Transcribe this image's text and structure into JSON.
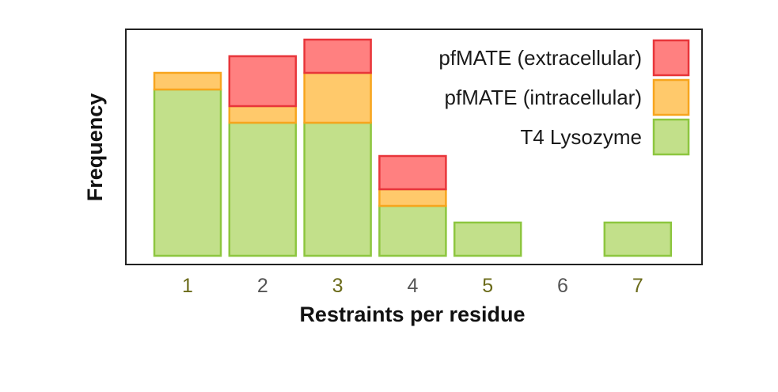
{
  "chart_data": {
    "type": "bar",
    "stacked": true,
    "categories": [
      "1",
      "2",
      "3",
      "4",
      "5",
      "6",
      "7"
    ],
    "series": [
      {
        "name": "T4 Lysozyme",
        "color": "#c2e08a",
        "edge": "#8dc63f",
        "values": [
          10,
          8,
          8,
          3,
          2,
          0,
          2
        ]
      },
      {
        "name": "pfMATE (intracellular)",
        "color": "#ffc96b",
        "edge": "#f7a51e",
        "values": [
          1,
          1,
          3,
          1,
          0,
          0,
          0
        ]
      },
      {
        "name": "pfMATE (extracellular)",
        "color": "#ff8080",
        "edge": "#e8353a",
        "values": [
          0,
          3,
          2,
          2,
          0,
          0,
          0
        ]
      }
    ],
    "legend_order": [
      "pfMATE (extracellular)",
      "pfMATE (intracellular)",
      "T4 Lysozyme"
    ],
    "legend_position": "top-right",
    "tick_colors": [
      "#6b6b1a",
      "#555555",
      "#6b6b1a",
      "#555555",
      "#6b6b1a",
      "#555555",
      "#6b6b1a"
    ],
    "xlabel": "Restraints per residue",
    "ylabel": "Frequency",
    "ylim": [
      0,
      13
    ],
    "grid": false
  }
}
